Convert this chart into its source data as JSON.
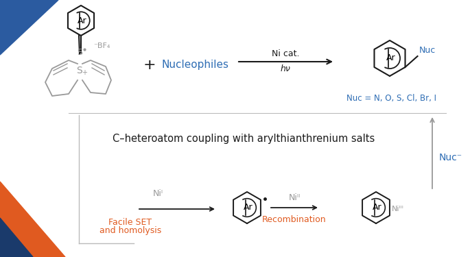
{
  "bg_color": "#ffffff",
  "blue": "#2E6DB4",
  "orange": "#E05A20",
  "gray": "#999999",
  "black": "#1a1a1a",
  "title_text": "C–heteroatom coupling with arylthianthrenium salts",
  "ni_cat": "Ni cat.",
  "hv": "hν",
  "nucleophiles": "Nucleophiles",
  "nuc_equals": "Nuc = N, O, S, Cl, Br, I",
  "nuc_label": "Nuc",
  "ni1": "Niᴵ",
  "ni2": "Niᴵᴵ",
  "ni3": "Niᴵᴵᴵ",
  "facile": "Facile SET",
  "homolysis": "and homolysis",
  "recombination": "Recombination",
  "nuc_minus": "Nuc⁻",
  "ar": "Ar",
  "bf4": "⁻BF₄",
  "plus": "+",
  "corner_blue": "#2B5BA0",
  "corner_orange": "#E05A20",
  "corner_dark": "#1A3A6B",
  "line_color": "#bbbbbb"
}
